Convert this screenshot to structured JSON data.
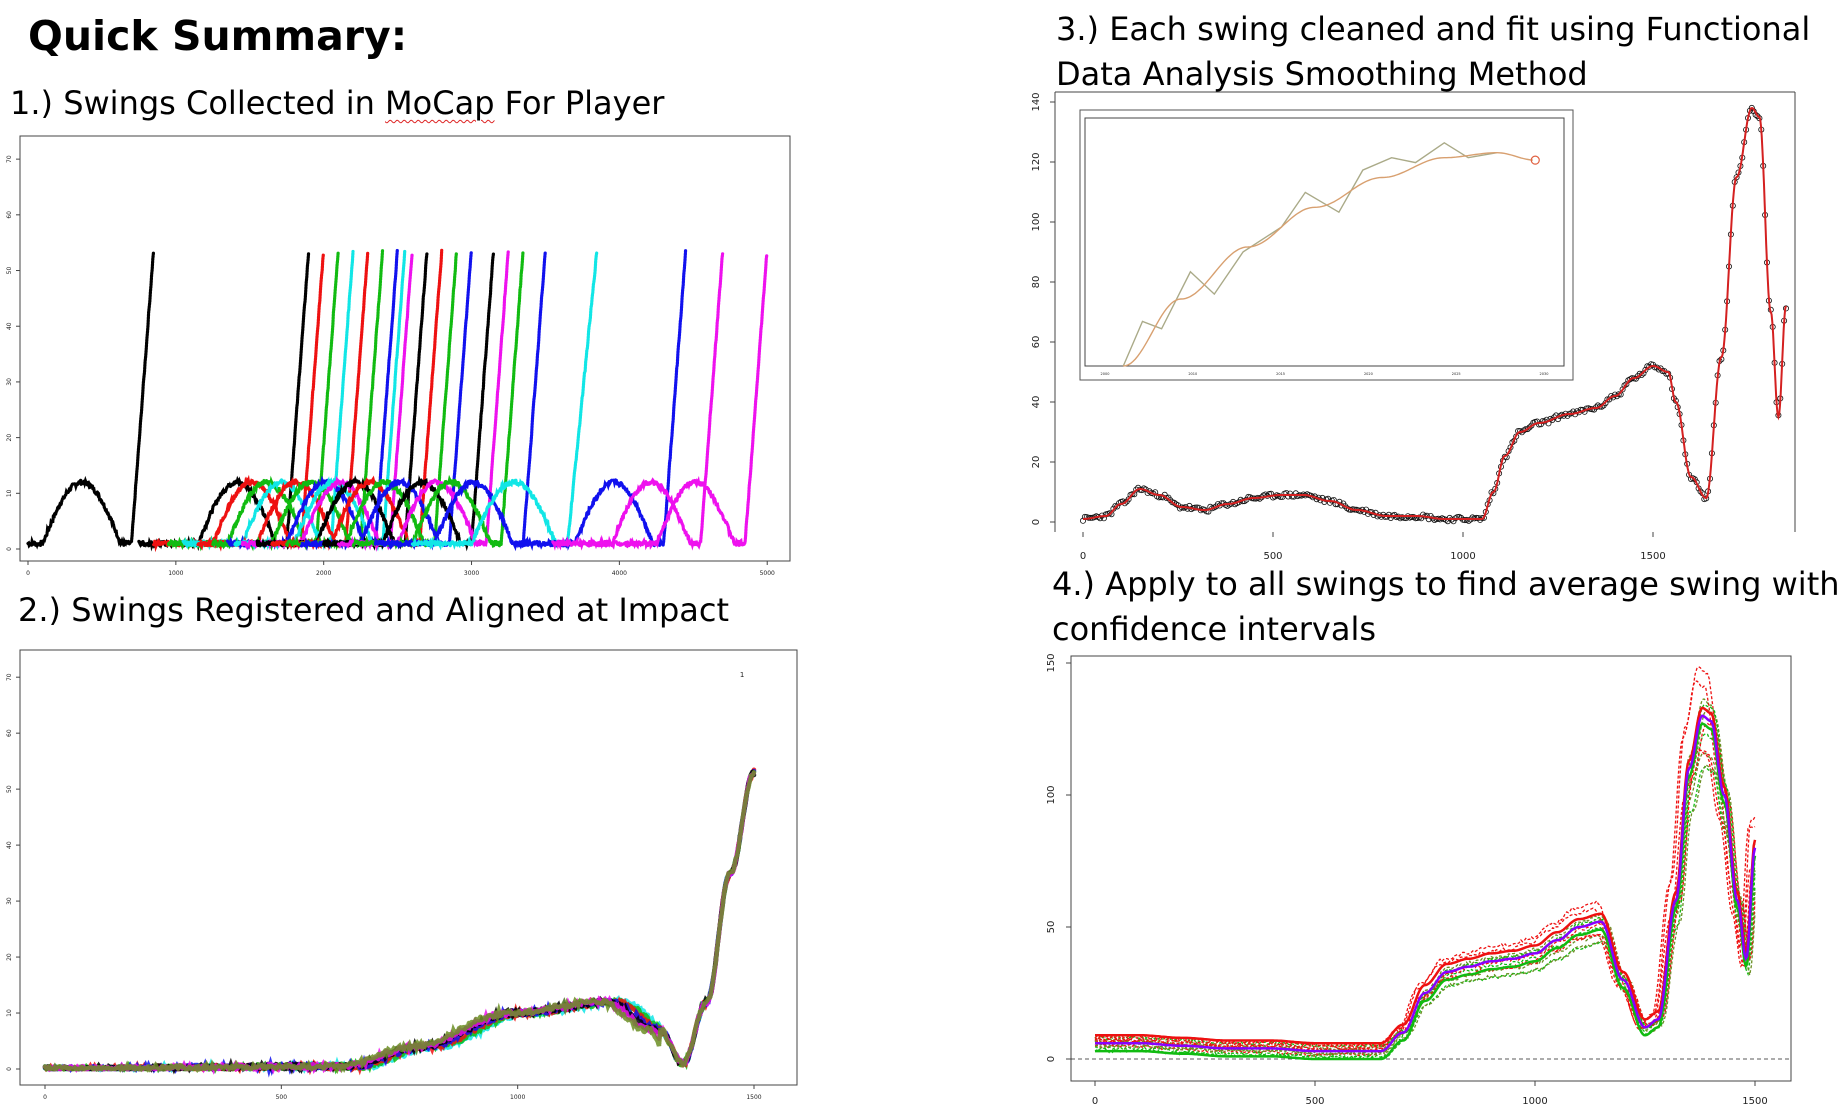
{
  "headings": {
    "main": "Quick Summary:",
    "step1_prefix": "1.) Swings Collected in ",
    "step1_word": "MoCap",
    "step1_suffix": " For Player",
    "step2": "2.) Swings Registered and Aligned at Impact",
    "step3_line1": "3.) Each swing cleaned and fit using Functional",
    "step3_line2": "Data Analysis Smoothing Method",
    "step4_line1": "4.) Apply to all swings to find average swing with",
    "step4_line2": "confidence intervals"
  },
  "colors": {
    "black": "#000000",
    "red": "#ee1111",
    "green": "#11bb11",
    "blue": "#1111ee",
    "cyan": "#11e6e6",
    "magenta": "#ee11ee",
    "olive": "#6b8e23",
    "purple": "#8800ff",
    "fit_red": "#d42020",
    "inset_curve": "#d8a070",
    "inset_raw": "#aaaa88"
  },
  "chart_data": [
    {
      "id": "chart1",
      "type": "scatter",
      "title": "",
      "xlim": [
        0,
        5100
      ],
      "ylim": [
        0,
        72
      ],
      "x_ticks": [
        "0",
        "1000",
        "2000",
        "3000",
        "4000",
        "5000"
      ],
      "y_ticks": [
        "0",
        "10",
        "20",
        "30",
        "40",
        "50",
        "60",
        "70"
      ],
      "series": [
        {
          "color": "black",
          "start": 100,
          "impact": 700,
          "end": 850
        },
        {
          "color": "black",
          "start": 1150,
          "impact": 1750,
          "end": 1900
        },
        {
          "color": "red",
          "start": 1250,
          "impact": 1850,
          "end": 2000
        },
        {
          "color": "green",
          "start": 1350,
          "impact": 1950,
          "end": 2100
        },
        {
          "color": "cyan",
          "start": 1450,
          "impact": 2050,
          "end": 2200
        },
        {
          "color": "red",
          "start": 1550,
          "impact": 2150,
          "end": 2300
        },
        {
          "color": "green",
          "start": 1650,
          "impact": 2250,
          "end": 2400
        },
        {
          "color": "blue",
          "start": 1750,
          "impact": 2350,
          "end": 2500
        },
        {
          "color": "cyan",
          "start": 1800,
          "impact": 2400,
          "end": 2550
        },
        {
          "color": "magenta",
          "start": 1850,
          "impact": 2450,
          "end": 2600
        },
        {
          "color": "black",
          "start": 1950,
          "impact": 2550,
          "end": 2700
        },
        {
          "color": "red",
          "start": 2050,
          "impact": 2650,
          "end": 2800
        },
        {
          "color": "green",
          "start": 2150,
          "impact": 2750,
          "end": 2900
        },
        {
          "color": "blue",
          "start": 2250,
          "impact": 2850,
          "end": 3000
        },
        {
          "color": "black",
          "start": 2400,
          "impact": 3000,
          "end": 3150
        },
        {
          "color": "magenta",
          "start": 2500,
          "impact": 3100,
          "end": 3250
        },
        {
          "color": "green",
          "start": 2600,
          "impact": 3200,
          "end": 3350
        },
        {
          "color": "blue",
          "start": 2750,
          "impact": 3350,
          "end": 3500
        },
        {
          "color": "cyan",
          "start": 3000,
          "impact": 3650,
          "end": 3850
        },
        {
          "color": "blue",
          "start": 3700,
          "impact": 4300,
          "end": 4450
        },
        {
          "color": "magenta",
          "start": 3950,
          "impact": 4550,
          "end": 4700
        },
        {
          "color": "magenta",
          "start": 4250,
          "impact": 4850,
          "end": 5000
        }
      ]
    },
    {
      "id": "chart2",
      "type": "scatter",
      "title": "",
      "xlim": [
        0,
        1550
      ],
      "ylim": [
        0,
        72
      ],
      "x_ticks": [
        "0",
        "500",
        "1000",
        "1500"
      ],
      "y_ticks": [
        "0",
        "10",
        "20",
        "30",
        "40",
        "50",
        "60",
        "70"
      ],
      "description_points": {
        "x": [
          0,
          650,
          800,
          1000,
          1200,
          1300,
          1350,
          1400,
          1450,
          1500
        ],
        "y": [
          0,
          0.5,
          4,
          10,
          12,
          7,
          1,
          12,
          35,
          53
        ]
      }
    },
    {
      "id": "chart3",
      "type": "line",
      "title": "",
      "xlim": [
        0,
        1850
      ],
      "ylim": [
        0,
        140
      ],
      "x_ticks": [
        "0",
        "500",
        "1000",
        "1500"
      ],
      "y_ticks": [
        "0",
        "20",
        "40",
        "60",
        "80",
        "100",
        "120",
        "140"
      ],
      "fit": {
        "x": [
          0,
          60,
          100,
          150,
          200,
          260,
          320,
          380,
          450,
          520,
          580,
          650,
          720,
          800,
          880,
          950,
          1000,
          1050,
          1080,
          1110,
          1150,
          1200,
          1280,
          1350,
          1400,
          1450,
          1500,
          1540,
          1560,
          1600,
          1640,
          1680,
          1720,
          1760,
          1780,
          1810,
          1830,
          1850
        ],
        "y": [
          1,
          2,
          6,
          11,
          9,
          5,
          4,
          6,
          8,
          9,
          9,
          7,
          4,
          2,
          2,
          1,
          1,
          1,
          10,
          22,
          30,
          33,
          36,
          38,
          42,
          48,
          52,
          50,
          40,
          15,
          8,
          55,
          115,
          138,
          135,
          70,
          35,
          72
        ]
      },
      "inset": {
        "x_ticks": [
          "2000",
          "2010",
          "2015",
          "2020",
          "2025",
          "2030"
        ],
        "raw": [
          [
            0.08,
            0
          ],
          [
            0.12,
            0.18
          ],
          [
            0.16,
            0.15
          ],
          [
            0.22,
            0.38
          ],
          [
            0.27,
            0.29
          ],
          [
            0.33,
            0.46
          ],
          [
            0.41,
            0.56
          ],
          [
            0.46,
            0.7
          ],
          [
            0.53,
            0.62
          ],
          [
            0.58,
            0.79
          ],
          [
            0.64,
            0.84
          ],
          [
            0.69,
            0.82
          ],
          [
            0.75,
            0.9
          ],
          [
            0.8,
            0.84
          ],
          [
            0.86,
            0.86
          ]
        ],
        "smooth": [
          [
            0.08,
            0
          ],
          [
            0.2,
            0.27
          ],
          [
            0.34,
            0.48
          ],
          [
            0.48,
            0.64
          ],
          [
            0.62,
            0.76
          ],
          [
            0.75,
            0.84
          ],
          [
            0.86,
            0.86
          ],
          [
            0.94,
            0.83
          ]
        ]
      }
    },
    {
      "id": "chart4",
      "type": "line",
      "title": "",
      "xlim": [
        0,
        1500
      ],
      "ylim": [
        -3,
        150
      ],
      "x_ticks": [
        "0",
        "500",
        "1000",
        "1500"
      ],
      "y_ticks": [
        "0",
        "50",
        "100",
        "150"
      ],
      "mean_swing": {
        "x": [
          0,
          100,
          200,
          300,
          400,
          500,
          600,
          650,
          700,
          750,
          800,
          850,
          900,
          950,
          1000,
          1050,
          1100,
          1150,
          1200,
          1250,
          1280,
          1320,
          1350,
          1380,
          1400,
          1430,
          1460,
          1480,
          1500
        ],
        "y": [
          6,
          6,
          5,
          4,
          4,
          3,
          3,
          3,
          10,
          25,
          33,
          35,
          37,
          38,
          40,
          45,
          50,
          52,
          30,
          12,
          15,
          60,
          110,
          130,
          128,
          100,
          60,
          38,
          80
        ]
      }
    }
  ]
}
